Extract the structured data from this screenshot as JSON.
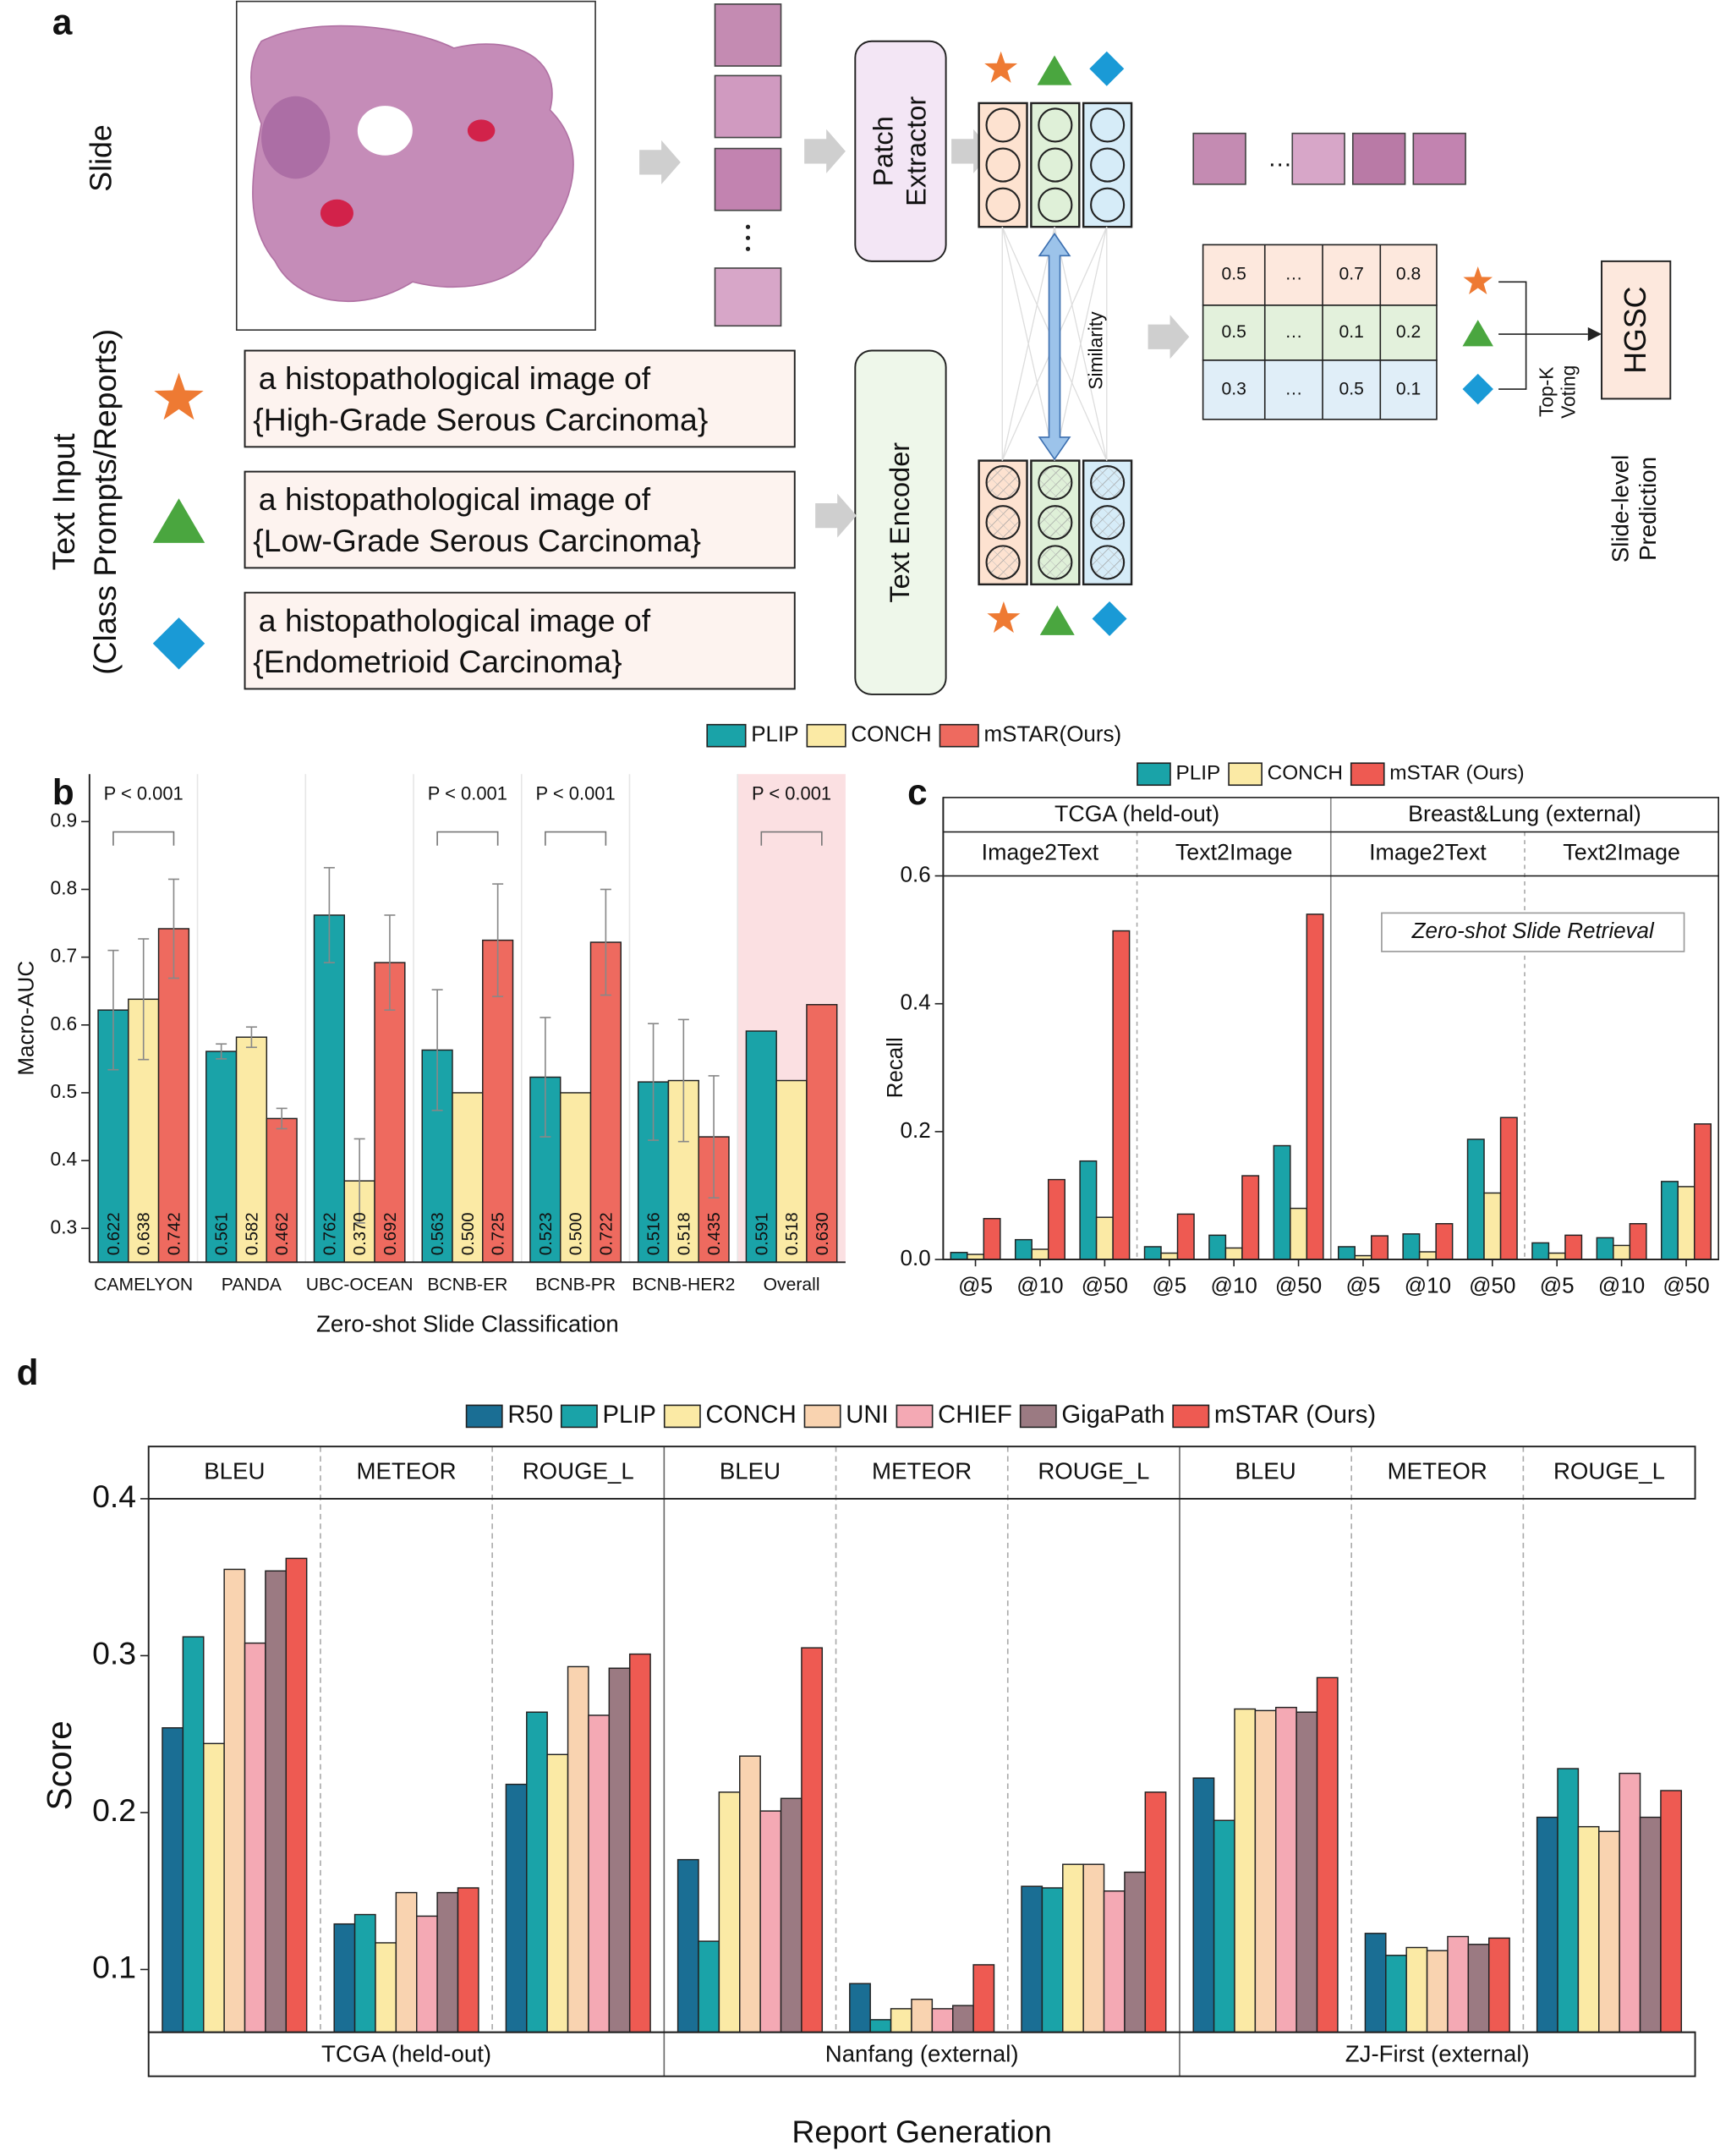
{
  "diagram": {
    "label": "a",
    "slide": "Slide",
    "text_input": "Text Input",
    "text_input_sub": "(Class Prompts/Reports)",
    "patch_extractor": [
      "Patch",
      "Extractor"
    ],
    "text_encoder": "Text Encoder",
    "similarity": "Similarity",
    "prompts": [
      {
        "line1": "a histopathological image of",
        "line2": "{High-Grade Serous Carcinoma}"
      },
      {
        "line1": "a histopathological image of",
        "line2": "{Low-Grade Serous Carcinoma}"
      },
      {
        "line1": "a histopathological image of",
        "line2": "{Endometrioid Carcinoma}"
      }
    ],
    "matrix": [
      [
        0.5,
        "…",
        0.7,
        0.8
      ],
      [
        0.5,
        "…",
        0.1,
        0.2
      ],
      [
        0.3,
        "…",
        0.5,
        0.1
      ]
    ],
    "voting": [
      "Top-K",
      "Voting"
    ],
    "prediction": "HGSC",
    "prediction_label": [
      "Slide-level",
      "Prediction"
    ]
  },
  "chart_data": [
    {
      "type": "bar",
      "panel_label": "b",
      "xlabel": "Zero-shot Slide Classification",
      "ylabel": "Macro-AUC",
      "categories": [
        "CAMELYON",
        "PANDA",
        "UBC-OCEAN",
        "BCNB-ER",
        "BCNB-PR",
        "BCNB-HER2",
        "Overall"
      ],
      "p_values": [
        "P < 0.001",
        null,
        null,
        "P < 0.001",
        "P < 0.001",
        null,
        "P < 0.001"
      ],
      "series": [
        {
          "name": "PLIP",
          "color": "#1aa3a8",
          "values": [
            0.622,
            0.561,
            0.762,
            0.563,
            0.523,
            0.516,
            0.591
          ],
          "value_labels": [
            "0.622",
            "0.561",
            "0.762",
            "0.563",
            "0.523",
            "0.516",
            "0.591"
          ],
          "errors": [
            0.088,
            0.011,
            0.07,
            0.089,
            0.088,
            0.086,
            null
          ]
        },
        {
          "name": "CONCH",
          "color": "#fbeaa5",
          "values": [
            0.638,
            0.582,
            0.37,
            0.5,
            0.5,
            0.518,
            0.518
          ],
          "value_labels": [
            "0.638",
            "0.582",
            "0.370",
            "0.500",
            "0.500",
            "0.518",
            "0.518"
          ],
          "errors": [
            0.089,
            0.015,
            0.062,
            null,
            null,
            0.09,
            null
          ]
        },
        {
          "name": "mSTAR(Ours)",
          "color": "#ee6a5f",
          "values": [
            0.742,
            0.462,
            0.692,
            0.725,
            0.722,
            0.435,
            0.63
          ],
          "value_labels": [
            "0.742",
            "0.462",
            "0.692",
            "0.725",
            "0.722",
            "0.435",
            "0.630"
          ],
          "errors": [
            0.073,
            0.015,
            0.07,
            0.083,
            0.078,
            0.09,
            null
          ]
        }
      ],
      "ylim": [
        0.25,
        0.97
      ],
      "yticks": [
        0.3,
        0.4,
        0.5,
        0.6,
        0.7,
        0.8,
        0.9
      ]
    },
    {
      "type": "bar",
      "panel_label": "c",
      "ylabel": "Recall",
      "annotation": "Zero-shot Slide Retrieval",
      "groups": [
        "TCGA (held-out)",
        "Breast&Lung (external)"
      ],
      "subgroups": [
        "Image2Text",
        "Text2Image",
        "Image2Text",
        "Text2Image"
      ],
      "categories": [
        "@5",
        "@10",
        "@50",
        "@5",
        "@10",
        "@50",
        "@5",
        "@10",
        "@50",
        "@5",
        "@10",
        "@50"
      ],
      "series": [
        {
          "name": "PLIP",
          "color": "#1aa3a8",
          "values": [
            0.011,
            0.031,
            0.154,
            0.02,
            0.038,
            0.178,
            0.02,
            0.04,
            0.188,
            0.026,
            0.034,
            0.122
          ]
        },
        {
          "name": "CONCH",
          "color": "#fbeaa5",
          "values": [
            0.008,
            0.016,
            0.066,
            0.01,
            0.018,
            0.08,
            0.006,
            0.012,
            0.104,
            0.01,
            0.022,
            0.114
          ]
        },
        {
          "name": "mSTAR (Ours)",
          "color": "#ee5a52",
          "values": [
            0.064,
            0.125,
            0.514,
            0.071,
            0.131,
            0.54,
            0.037,
            0.056,
            0.222,
            0.038,
            0.056,
            0.212
          ]
        }
      ],
      "ylim": [
        0,
        0.6
      ],
      "yticks": [
        {
          "value": 0,
          "label": "0.0"
        },
        0.2,
        0.4,
        0.6
      ]
    },
    {
      "type": "bar",
      "panel_label": "d",
      "xlabel": "Report Generation",
      "ylabel": "Score",
      "groups": [
        "TCGA (held-out)",
        "Nanfang (external)",
        "ZJ-First (external)"
      ],
      "categories": [
        "BLEU",
        "METEOR",
        "ROUGE_L",
        "BLEU",
        "METEOR",
        "ROUGE_L",
        "BLEU",
        "METEOR",
        "ROUGE_L"
      ],
      "series": [
        {
          "name": "R50",
          "color": "#1a6e94",
          "values": [
            0.254,
            0.129,
            0.218,
            0.17,
            0.091,
            0.153,
            0.222,
            0.123,
            0.197
          ]
        },
        {
          "name": "PLIP",
          "color": "#1aa3a8",
          "values": [
            0.312,
            0.135,
            0.264,
            0.118,
            0.068,
            0.152,
            0.195,
            0.109,
            0.228
          ]
        },
        {
          "name": "CONCH",
          "color": "#fbeaa5",
          "values": [
            0.244,
            0.117,
            0.237,
            0.213,
            0.075,
            0.167,
            0.266,
            0.114,
            0.191
          ]
        },
        {
          "name": "UNI",
          "color": "#f9d3b0",
          "values": [
            0.355,
            0.149,
            0.293,
            0.236,
            0.081,
            0.167,
            0.265,
            0.112,
            0.188
          ]
        },
        {
          "name": "CHIEF",
          "color": "#f4a9b4",
          "values": [
            0.308,
            0.134,
            0.262,
            0.201,
            0.075,
            0.15,
            0.267,
            0.121,
            0.225
          ]
        },
        {
          "name": "GigaPath",
          "color": "#9b7a82",
          "values": [
            0.354,
            0.149,
            0.292,
            0.209,
            0.077,
            0.162,
            0.264,
            0.116,
            0.197
          ]
        },
        {
          "name": "mSTAR (Ours)",
          "color": "#ee5a52",
          "values": [
            0.362,
            0.152,
            0.301,
            0.305,
            0.103,
            0.213,
            0.286,
            0.12,
            0.214
          ]
        }
      ],
      "ylim": [
        0.06,
        0.4
      ],
      "yticks": [
        0.1,
        0.2,
        0.3,
        0.4
      ]
    }
  ]
}
